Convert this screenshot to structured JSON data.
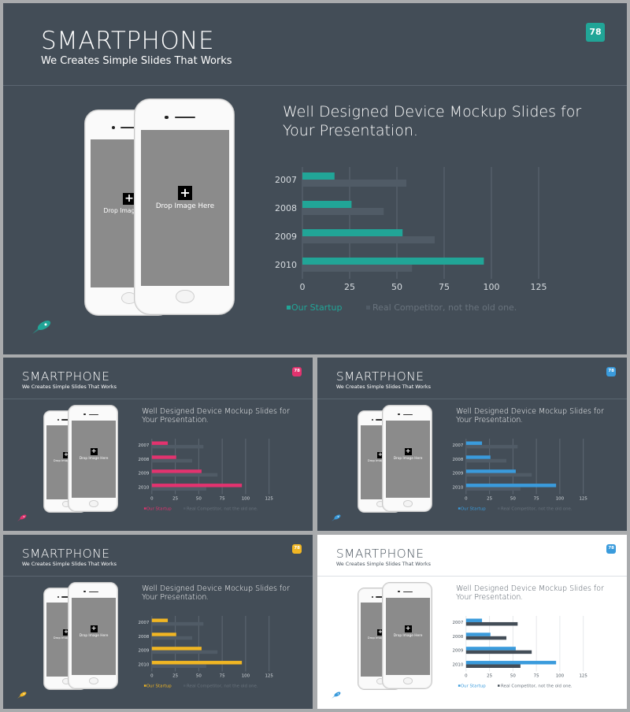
{
  "slides": [
    {
      "id": "main",
      "title": "SMARTPHONE",
      "subtitle": "We Creates Simple Slides That Works",
      "page_number": "78",
      "accent": "#21a597",
      "badge_color": "#21a597",
      "theme": "dark",
      "heading_line1": "Well Designed Device Mockup Slides for",
      "heading_line2": "Your Presentation.",
      "drop_text": "Drop Image Here"
    },
    {
      "id": "pink",
      "title": "SMARTPHONE",
      "subtitle": "We Creates Simple Slides That Works",
      "page_number": "78",
      "accent": "#e2336f",
      "badge_color": "#e2336f",
      "theme": "dark",
      "heading_line1": "Well Designed Device Mockup Slides for",
      "heading_line2": "Your Presentation.",
      "drop_text": "Drop Image Here"
    },
    {
      "id": "blue",
      "title": "SMARTPHONE",
      "subtitle": "We Creates Simple Slides That Works",
      "page_number": "78",
      "accent": "#3a9bdc",
      "badge_color": "#3a9bdc",
      "theme": "dark",
      "heading_line1": "Well Designed Device Mockup Slides for",
      "heading_line2": "Your Presentation.",
      "drop_text": "Drop Image Here"
    },
    {
      "id": "yellow",
      "title": "SMARTPHONE",
      "subtitle": "We Creates Simple Slides That Works",
      "page_number": "78",
      "accent": "#f1b623",
      "badge_color": "#f1b623",
      "theme": "dark",
      "heading_line1": "Well Designed Device Mockup Slides for",
      "heading_line2": "Your Presentation.",
      "drop_text": "Drop Image Here"
    },
    {
      "id": "white",
      "title": "SMARTPHONE",
      "subtitle": "We Creates Simple Slides That Works",
      "page_number": "78",
      "accent": "#3a9bdc",
      "badge_color": "#3a9bdc",
      "theme": "light",
      "heading_line1": "Well Designed Device Mockup Slides for",
      "heading_line2": "Your Presentation.",
      "drop_text": "Drop Image Here"
    }
  ],
  "icons": {
    "decoration": "rocket-icon",
    "placeholder": "plus-icon"
  },
  "chart_data": {
    "type": "bar",
    "orientation": "horizontal",
    "categories": [
      "2007",
      "2008",
      "2009",
      "2010"
    ],
    "series": [
      {
        "name": "Our Startup",
        "values": [
          17,
          26,
          53,
          96
        ]
      },
      {
        "name": "Real Competitor, not the old one.",
        "values": [
          55,
          43,
          70,
          58
        ]
      }
    ],
    "xlim": [
      0,
      125
    ],
    "xticks": [
      "0",
      "25",
      "50",
      "75",
      "100",
      "125"
    ],
    "grid": true,
    "legend": "bottom",
    "competitor_color_dark": "#505b66",
    "competitor_color_light": "#434d57"
  }
}
